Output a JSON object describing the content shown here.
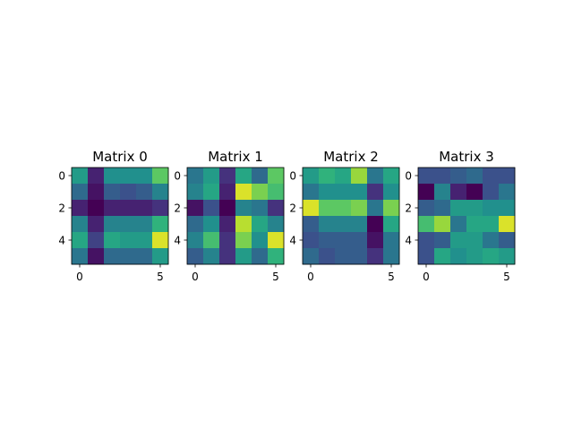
{
  "chart_data": [
    {
      "type": "heatmap",
      "title": "Matrix 0",
      "colormap": "viridis",
      "xticks": [
        0,
        5
      ],
      "yticks": [
        0,
        2,
        4
      ],
      "values": [
        [
          0.55,
          0.1,
          0.5,
          0.5,
          0.5,
          0.75
        ],
        [
          0.35,
          0.05,
          0.3,
          0.25,
          0.3,
          0.45
        ],
        [
          0.1,
          0.0,
          0.1,
          0.1,
          0.1,
          0.15
        ],
        [
          0.45,
          0.1,
          0.45,
          0.45,
          0.45,
          0.65
        ],
        [
          0.6,
          0.2,
          0.6,
          0.55,
          0.55,
          0.95
        ],
        [
          0.4,
          0.05,
          0.35,
          0.35,
          0.35,
          0.55
        ]
      ]
    },
    {
      "type": "heatmap",
      "title": "Matrix 1",
      "colormap": "viridis",
      "xticks": [
        0,
        5
      ],
      "yticks": [
        0,
        2,
        4
      ],
      "values": [
        [
          0.4,
          0.55,
          0.15,
          0.6,
          0.35,
          0.75
        ],
        [
          0.45,
          0.6,
          0.1,
          0.95,
          0.8,
          0.7
        ],
        [
          0.05,
          0.25,
          0.0,
          0.45,
          0.4,
          0.15
        ],
        [
          0.35,
          0.5,
          0.1,
          0.9,
          0.6,
          0.45
        ],
        [
          0.45,
          0.7,
          0.15,
          0.8,
          0.5,
          0.95
        ],
        [
          0.3,
          0.45,
          0.15,
          0.55,
          0.35,
          0.65
        ]
      ]
    },
    {
      "type": "heatmap",
      "title": "Matrix 2",
      "colormap": "viridis",
      "xticks": [
        0,
        5
      ],
      "yticks": [
        0,
        2,
        4
      ],
      "values": [
        [
          0.55,
          0.65,
          0.6,
          0.85,
          0.4,
          0.6
        ],
        [
          0.4,
          0.5,
          0.5,
          0.5,
          0.15,
          0.5
        ],
        [
          0.95,
          0.75,
          0.75,
          0.8,
          0.4,
          0.8
        ],
        [
          0.3,
          0.45,
          0.45,
          0.45,
          0.0,
          0.6
        ],
        [
          0.25,
          0.3,
          0.3,
          0.3,
          0.05,
          0.4
        ],
        [
          0.35,
          0.25,
          0.3,
          0.3,
          0.15,
          0.4
        ]
      ]
    },
    {
      "type": "heatmap",
      "title": "Matrix 3",
      "colormap": "viridis",
      "xticks": [
        0,
        5
      ],
      "yticks": [
        0,
        2,
        4
      ],
      "values": [
        [
          0.25,
          0.25,
          0.3,
          0.35,
          0.25,
          0.25
        ],
        [
          0.0,
          0.45,
          0.1,
          0.0,
          0.25,
          0.4
        ],
        [
          0.3,
          0.35,
          0.55,
          0.55,
          0.5,
          0.5
        ],
        [
          0.7,
          0.85,
          0.4,
          0.6,
          0.6,
          0.95
        ],
        [
          0.25,
          0.3,
          0.55,
          0.55,
          0.4,
          0.3
        ],
        [
          0.25,
          0.6,
          0.5,
          0.55,
          0.6,
          0.55
        ]
      ]
    }
  ]
}
